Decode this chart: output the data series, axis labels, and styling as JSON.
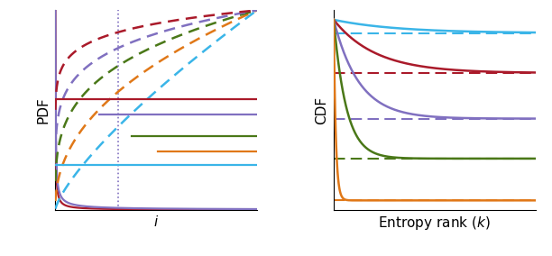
{
  "colors": {
    "blue": "#3ab5e8",
    "red": "#aa1a2a",
    "purple": "#8070c0",
    "green": "#4a7818",
    "orange": "#e07818"
  },
  "left_xlabel": "$i$",
  "left_ylabel": "PDF",
  "right_xlabel": "Entropy rank $(k)$",
  "right_ylabel": "CDF",
  "figsize": [
    6.12,
    2.84
  ],
  "dpi": 100,
  "pdf_solid_alphas": [
    0.04,
    0.2
  ],
  "pdf_solid_colors": [
    "red",
    "purple"
  ],
  "pdf_dashed_alphas": [
    0.75,
    0.45,
    0.28,
    0.18,
    0.1
  ],
  "pdf_dashed_colors": [
    "blue",
    "orange",
    "green",
    "purple",
    "red"
  ],
  "hline_y": [
    0.555,
    0.48,
    0.37,
    0.295,
    0.225
  ],
  "hline_xstart": [
    0.0,
    0.22,
    0.38,
    0.51,
    0.0
  ],
  "hline_colors": [
    "red",
    "purple",
    "green",
    "orange",
    "blue"
  ],
  "vline_x": 0.31,
  "cdf_asymptotes": [
    0.93,
    0.72,
    0.48,
    0.27,
    0.05
  ],
  "cdf_rates": [
    0.04,
    0.06,
    0.1,
    0.2,
    1.2
  ],
  "cdf_colors": [
    "blue",
    "red",
    "purple",
    "green",
    "orange"
  ]
}
